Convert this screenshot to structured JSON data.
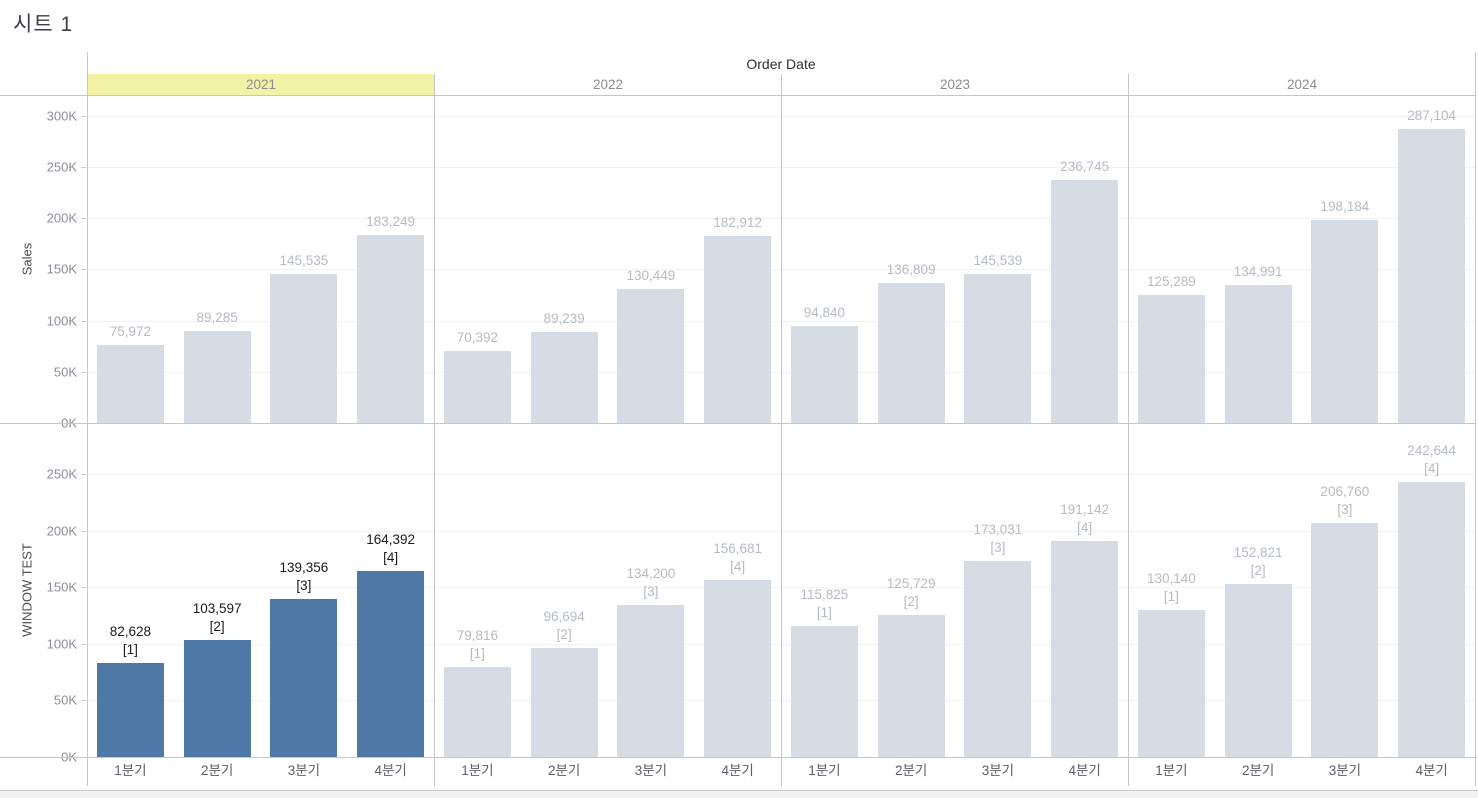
{
  "ui": {
    "title": "시트 1",
    "column_field_label": "Order Date",
    "colors": {
      "bar_default": "#d5dce4",
      "bar_highlight": "#4e79a7",
      "header_highlight": "#f2f2a6",
      "label_gray": "#b5bbc2",
      "label_dark": "#1a1a1a",
      "gridline": "#f2f2f2",
      "divider": "#c6c6c6"
    }
  },
  "chart_data": {
    "type": "bar",
    "title": "시트 1",
    "column_header": "Order Date",
    "years": [
      "2021",
      "2022",
      "2023",
      "2024"
    ],
    "quarters": [
      "1분기",
      "2분기",
      "3분기",
      "4분기"
    ],
    "highlighted": {
      "year": "2021",
      "measure": "WINDOW TEST"
    },
    "grid": true,
    "legend": null,
    "rows": [
      {
        "axis_label": "Sales",
        "ylim": [
          0,
          320000
        ],
        "ticks": [
          {
            "value": 0,
            "label": "0K"
          },
          {
            "value": 50000,
            "label": "50K"
          },
          {
            "value": 100000,
            "label": "100K"
          },
          {
            "value": 150000,
            "label": "150K"
          },
          {
            "value": 200000,
            "label": "200K"
          },
          {
            "value": 250000,
            "label": "250K"
          },
          {
            "value": 300000,
            "label": "300K"
          }
        ],
        "panels": [
          {
            "year": "2021",
            "highlight": false,
            "bars": [
              {
                "value": 75972,
                "label_lines": [
                  "75,972"
                ]
              },
              {
                "value": 89285,
                "label_lines": [
                  "89,285"
                ]
              },
              {
                "value": 145535,
                "label_lines": [
                  "145,535"
                ]
              },
              {
                "value": 183249,
                "label_lines": [
                  "183,249"
                ]
              }
            ]
          },
          {
            "year": "2022",
            "highlight": false,
            "bars": [
              {
                "value": 70392,
                "label_lines": [
                  "70,392"
                ]
              },
              {
                "value": 89239,
                "label_lines": [
                  "89,239"
                ]
              },
              {
                "value": 130449,
                "label_lines": [
                  "130,449"
                ]
              },
              {
                "value": 182912,
                "label_lines": [
                  "182,912"
                ]
              }
            ]
          },
          {
            "year": "2023",
            "highlight": false,
            "bars": [
              {
                "value": 94840,
                "label_lines": [
                  "94,840"
                ]
              },
              {
                "value": 136809,
                "label_lines": [
                  "136,809"
                ]
              },
              {
                "value": 145539,
                "label_lines": [
                  "145,539"
                ]
              },
              {
                "value": 236745,
                "label_lines": [
                  "236,745"
                ]
              }
            ]
          },
          {
            "year": "2024",
            "highlight": false,
            "bars": [
              {
                "value": 125289,
                "label_lines": [
                  "125,289"
                ]
              },
              {
                "value": 134991,
                "label_lines": [
                  "134,991"
                ]
              },
              {
                "value": 198184,
                "label_lines": [
                  "198,184"
                ]
              },
              {
                "value": 287104,
                "label_lines": [
                  "287,104"
                ]
              }
            ]
          }
        ]
      },
      {
        "axis_label": "WINDOW TEST",
        "ylim": [
          0,
          295000
        ],
        "ticks": [
          {
            "value": 0,
            "label": "0K"
          },
          {
            "value": 50000,
            "label": "50K"
          },
          {
            "value": 100000,
            "label": "100K"
          },
          {
            "value": 150000,
            "label": "150K"
          },
          {
            "value": 200000,
            "label": "200K"
          },
          {
            "value": 250000,
            "label": "250K"
          }
        ],
        "panels": [
          {
            "year": "2021",
            "highlight": true,
            "bars": [
              {
                "value": 82628,
                "label_lines": [
                  "82,628",
                  "[1]"
                ]
              },
              {
                "value": 103597,
                "label_lines": [
                  "103,597",
                  "[2]"
                ]
              },
              {
                "value": 139356,
                "label_lines": [
                  "139,356",
                  "[3]"
                ]
              },
              {
                "value": 164392,
                "label_lines": [
                  "164,392",
                  "[4]"
                ]
              }
            ]
          },
          {
            "year": "2022",
            "highlight": false,
            "bars": [
              {
                "value": 79816,
                "label_lines": [
                  "79,816",
                  "[1]"
                ]
              },
              {
                "value": 96694,
                "label_lines": [
                  "96,694",
                  "[2]"
                ]
              },
              {
                "value": 134200,
                "label_lines": [
                  "134,200",
                  "[3]"
                ]
              },
              {
                "value": 156681,
                "label_lines": [
                  "156,681",
                  "[4]"
                ]
              }
            ]
          },
          {
            "year": "2023",
            "highlight": false,
            "bars": [
              {
                "value": 115825,
                "label_lines": [
                  "115,825",
                  "[1]"
                ]
              },
              {
                "value": 125729,
                "label_lines": [
                  "125,729",
                  "[2]"
                ]
              },
              {
                "value": 173031,
                "label_lines": [
                  "173,031",
                  "[3]"
                ]
              },
              {
                "value": 191142,
                "label_lines": [
                  "191,142",
                  "[4]"
                ]
              }
            ]
          },
          {
            "year": "2024",
            "highlight": false,
            "bars": [
              {
                "value": 130140,
                "label_lines": [
                  "130,140",
                  "[1]"
                ]
              },
              {
                "value": 152821,
                "label_lines": [
                  "152,821",
                  "[2]"
                ]
              },
              {
                "value": 206760,
                "label_lines": [
                  "206,760",
                  "[3]"
                ]
              },
              {
                "value": 242644,
                "label_lines": [
                  "242,644",
                  "[4]"
                ]
              }
            ]
          }
        ]
      }
    ]
  }
}
